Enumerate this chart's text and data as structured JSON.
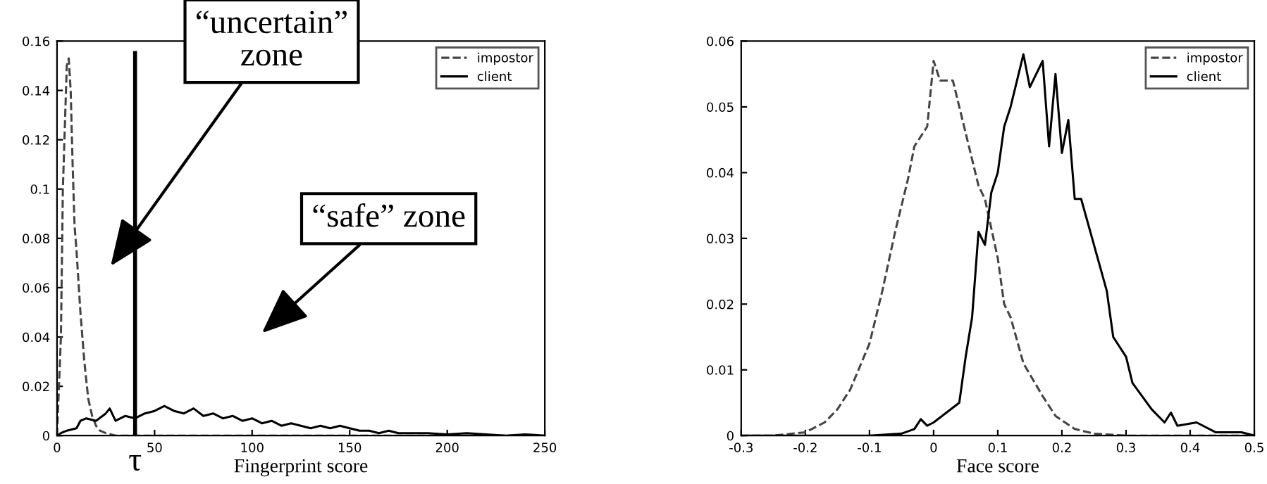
{
  "chart_data": [
    {
      "type": "line",
      "xlabel": "Fingerprint score",
      "xlim": [
        0,
        250
      ],
      "xticks": [
        0,
        50,
        100,
        150,
        200,
        250
      ],
      "ylim": [
        0,
        0.16
      ],
      "yticks": [
        0,
        0.02,
        0.04,
        0.06,
        0.08,
        0.1,
        0.12,
        0.14,
        0.16
      ],
      "grid": false,
      "legend": "top right",
      "series": [
        {
          "name": "impostor",
          "color": "#444444",
          "line_style": "dashed",
          "x": [
            0,
            2,
            3,
            5,
            6,
            7,
            8,
            9,
            10,
            12,
            14,
            16,
            18,
            20,
            22,
            25,
            30,
            50,
            100,
            150,
            200,
            250
          ],
          "values": [
            0,
            0.04,
            0.1,
            0.15,
            0.153,
            0.14,
            0.11,
            0.085,
            0.075,
            0.05,
            0.03,
            0.015,
            0.008,
            0.004,
            0.002,
            0.001,
            0,
            0,
            0,
            0,
            0,
            0
          ]
        },
        {
          "name": "client",
          "color": "#000000",
          "line_style": "solid",
          "x": [
            0,
            2,
            5,
            10,
            12,
            15,
            20,
            25,
            27,
            30,
            35,
            40,
            45,
            50,
            55,
            60,
            65,
            70,
            75,
            80,
            85,
            90,
            95,
            100,
            105,
            110,
            115,
            120,
            125,
            130,
            135,
            140,
            145,
            150,
            155,
            160,
            165,
            170,
            175,
            180,
            190,
            200,
            210,
            220,
            230,
            240,
            250
          ],
          "values": [
            0,
            0.001,
            0.002,
            0.003,
            0.006,
            0.007,
            0.006,
            0.009,
            0.011,
            0.006,
            0.008,
            0.007,
            0.009,
            0.01,
            0.012,
            0.01,
            0.009,
            0.011,
            0.008,
            0.009,
            0.007,
            0.008,
            0.006,
            0.007,
            0.005,
            0.006,
            0.004,
            0.005,
            0.004,
            0.003,
            0.004,
            0.003,
            0.004,
            0.003,
            0.002,
            0.002,
            0.001,
            0.002,
            0.001,
            0.001,
            0.001,
            0.0005,
            0.001,
            0.0005,
            0,
            0.0005,
            0
          ]
        }
      ],
      "ref_lines": [
        {
          "axis": "x",
          "value": 40,
          "label": "τ",
          "color": "#000000"
        }
      ],
      "annotations": [
        "“uncertain”\nzone",
        "“safe” zone"
      ]
    },
    {
      "type": "line",
      "xlabel": "Face score",
      "xlim": [
        -0.3,
        0.5
      ],
      "xticks": [
        -0.3,
        -0.2,
        -0.1,
        0,
        0.1,
        0.2,
        0.3,
        0.4,
        0.5
      ],
      "ylim": [
        0,
        0.06
      ],
      "yticks": [
        0,
        0.01,
        0.02,
        0.03,
        0.04,
        0.05,
        0.06
      ],
      "grid": false,
      "legend": "top right",
      "series": [
        {
          "name": "impostor",
          "color": "#444444",
          "line_style": "dashed",
          "x": [
            -0.3,
            -0.25,
            -0.2,
            -0.17,
            -0.15,
            -0.13,
            -0.1,
            -0.08,
            -0.06,
            -0.04,
            -0.03,
            -0.01,
            0,
            0.01,
            0.03,
            0.05,
            0.07,
            0.08,
            0.1,
            0.11,
            0.12,
            0.14,
            0.17,
            0.19,
            0.22,
            0.25,
            0.3,
            0.5
          ],
          "values": [
            0,
            0,
            0.0005,
            0.002,
            0.004,
            0.007,
            0.014,
            0.022,
            0.031,
            0.039,
            0.044,
            0.047,
            0.057,
            0.054,
            0.054,
            0.046,
            0.038,
            0.036,
            0.027,
            0.02,
            0.018,
            0.011,
            0.006,
            0.003,
            0.001,
            0.0003,
            0,
            0
          ]
        },
        {
          "name": "client",
          "color": "#000000",
          "line_style": "solid",
          "x": [
            -0.3,
            -0.1,
            -0.05,
            -0.03,
            -0.02,
            -0.01,
            0,
            0.02,
            0.04,
            0.05,
            0.06,
            0.07,
            0.08,
            0.09,
            0.1,
            0.11,
            0.12,
            0.14,
            0.15,
            0.17,
            0.18,
            0.19,
            0.2,
            0.21,
            0.22,
            0.23,
            0.25,
            0.27,
            0.28,
            0.3,
            0.31,
            0.34,
            0.36,
            0.37,
            0.38,
            0.41,
            0.44,
            0.48,
            0.5
          ],
          "values": [
            0,
            0,
            0.0003,
            0.001,
            0.0025,
            0.0015,
            0.002,
            0.0035,
            0.005,
            0.012,
            0.018,
            0.031,
            0.029,
            0.037,
            0.04,
            0.047,
            0.05,
            0.058,
            0.053,
            0.057,
            0.044,
            0.055,
            0.043,
            0.048,
            0.036,
            0.036,
            0.029,
            0.022,
            0.015,
            0.012,
            0.008,
            0.004,
            0.002,
            0.0035,
            0.0015,
            0.002,
            0.0005,
            0.0005,
            0
          ]
        }
      ]
    }
  ]
}
